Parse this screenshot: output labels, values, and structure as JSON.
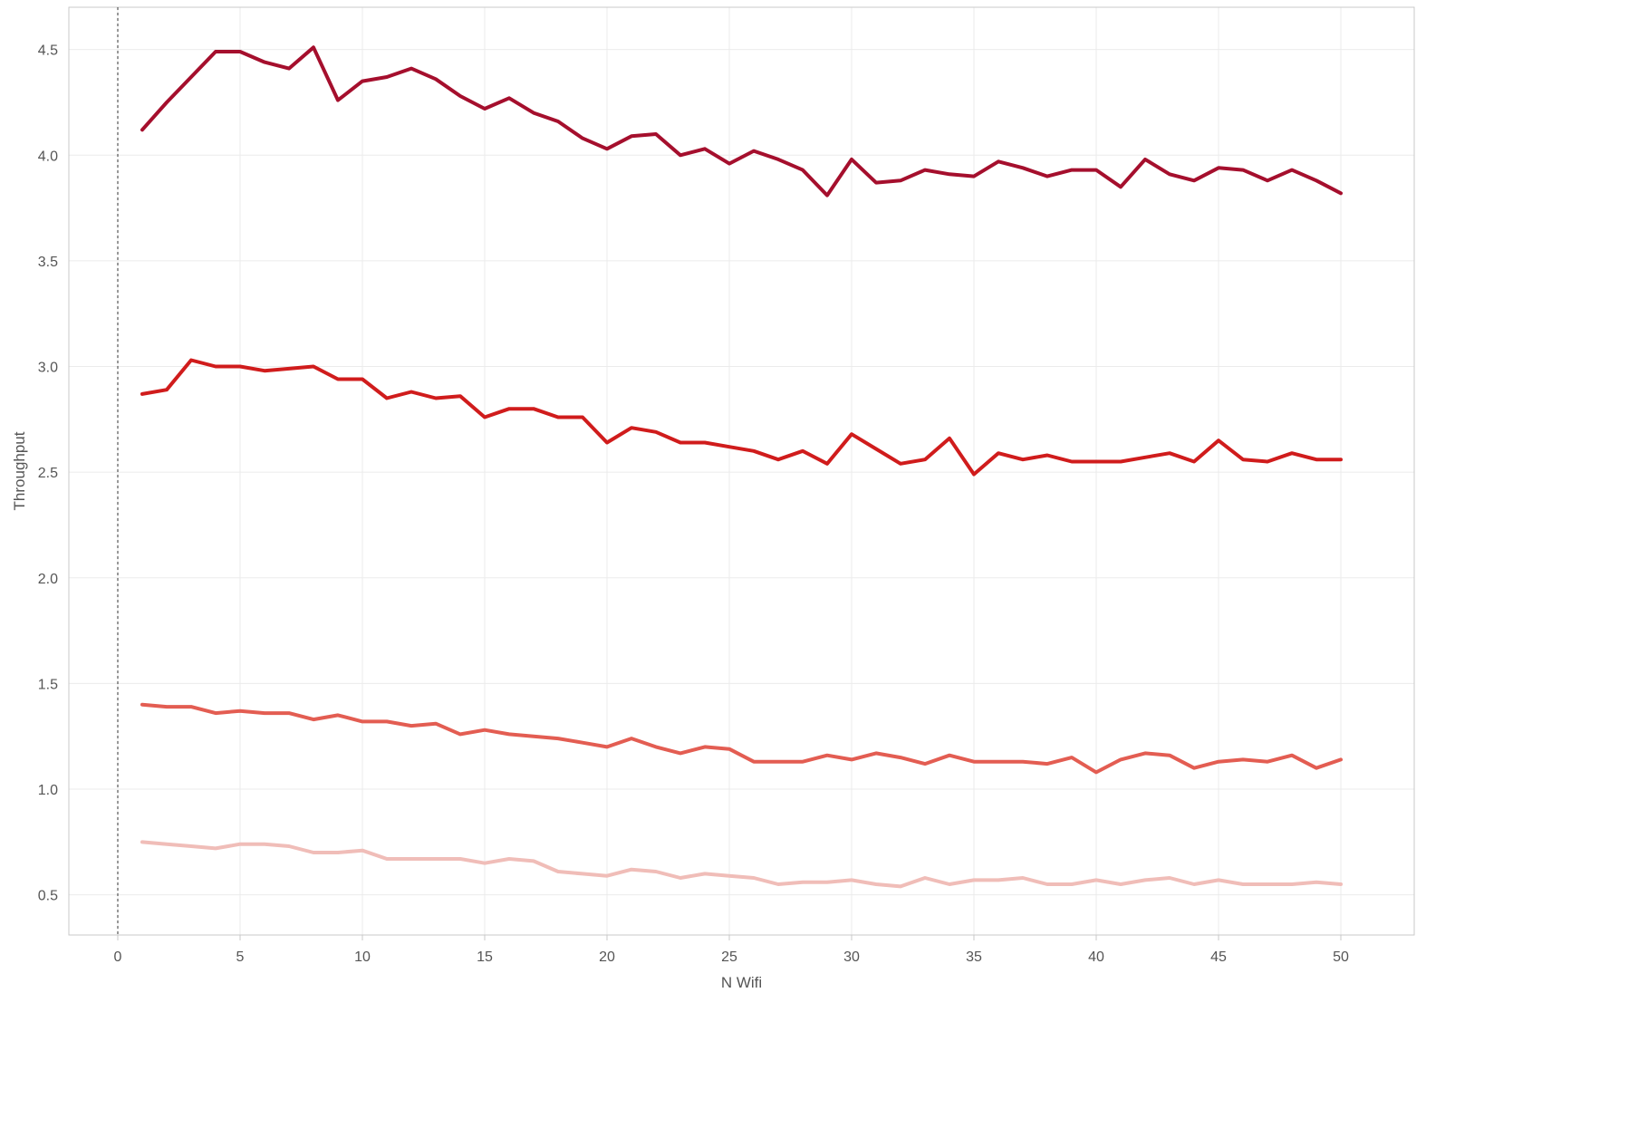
{
  "chart_data": {
    "type": "line",
    "title": "",
    "xlabel": "N Wifi",
    "ylabel": "Throughput",
    "xlim": [
      -2,
      53
    ],
    "ylim": [
      0.31,
      4.7
    ],
    "x_ticks": [
      0,
      5,
      10,
      15,
      20,
      25,
      30,
      35,
      40,
      45,
      50
    ],
    "x_tick_labels": [
      "0",
      "5",
      "10",
      "15",
      "20",
      "25",
      "30",
      "35",
      "40",
      "45",
      "50"
    ],
    "y_ticks": [
      0.5,
      1.0,
      1.5,
      2.0,
      2.5,
      3.0,
      3.5,
      4.0,
      4.5
    ],
    "y_tick_labels": [
      "0.5",
      "1.0",
      "1.5",
      "2.0",
      "2.5",
      "3.0",
      "3.5",
      "4.0",
      "4.5"
    ],
    "grid": true,
    "reference_line_x": 0,
    "x": [
      1,
      2,
      3,
      4,
      5,
      6,
      7,
      8,
      9,
      10,
      11,
      12,
      13,
      14,
      15,
      16,
      17,
      18,
      19,
      20,
      21,
      22,
      23,
      24,
      25,
      26,
      27,
      28,
      29,
      30,
      31,
      32,
      33,
      34,
      35,
      36,
      37,
      38,
      39,
      40,
      41,
      42,
      43,
      44,
      45,
      46,
      47,
      48,
      49,
      50
    ],
    "series": [
      {
        "color": "#a50f2d",
        "values": [
          4.12,
          4.25,
          4.37,
          4.49,
          4.49,
          4.44,
          4.41,
          4.51,
          4.26,
          4.35,
          4.37,
          4.41,
          4.36,
          4.28,
          4.22,
          4.27,
          4.2,
          4.16,
          4.08,
          4.03,
          4.09,
          4.1,
          4.0,
          4.03,
          3.96,
          4.02,
          3.98,
          3.93,
          3.81,
          3.98,
          3.87,
          3.88,
          3.93,
          3.91,
          3.9,
          3.97,
          3.94,
          3.9,
          3.93,
          3.93,
          3.85,
          3.98,
          3.91,
          3.88,
          3.94,
          3.93,
          3.88,
          3.93,
          3.88,
          3.82
        ]
      },
      {
        "color": "#d01c1c",
        "values": [
          2.87,
          2.89,
          3.03,
          3.0,
          3.0,
          2.98,
          2.99,
          3.0,
          2.94,
          2.94,
          2.85,
          2.88,
          2.85,
          2.86,
          2.76,
          2.8,
          2.8,
          2.76,
          2.76,
          2.64,
          2.71,
          2.69,
          2.64,
          2.64,
          2.62,
          2.6,
          2.56,
          2.6,
          2.54,
          2.68,
          2.61,
          2.54,
          2.56,
          2.66,
          2.49,
          2.59,
          2.56,
          2.58,
          2.55,
          2.55,
          2.55,
          2.57,
          2.59,
          2.55,
          2.65,
          2.56,
          2.55,
          2.59,
          2.56,
          2.56
        ]
      },
      {
        "color": "#e35d52",
        "values": [
          1.4,
          1.39,
          1.39,
          1.36,
          1.37,
          1.36,
          1.36,
          1.33,
          1.35,
          1.32,
          1.32,
          1.3,
          1.31,
          1.26,
          1.28,
          1.26,
          1.25,
          1.24,
          1.22,
          1.2,
          1.24,
          1.2,
          1.17,
          1.2,
          1.19,
          1.13,
          1.13,
          1.13,
          1.16,
          1.14,
          1.17,
          1.15,
          1.12,
          1.16,
          1.13,
          1.13,
          1.13,
          1.12,
          1.15,
          1.08,
          1.14,
          1.17,
          1.16,
          1.1,
          1.13,
          1.14,
          1.13,
          1.16,
          1.1,
          1.14
        ]
      },
      {
        "color": "#f0bdb8",
        "values": [
          0.75,
          0.74,
          0.73,
          0.72,
          0.74,
          0.74,
          0.73,
          0.7,
          0.7,
          0.71,
          0.67,
          0.67,
          0.67,
          0.67,
          0.65,
          0.67,
          0.66,
          0.61,
          0.6,
          0.59,
          0.62,
          0.61,
          0.58,
          0.6,
          0.59,
          0.58,
          0.55,
          0.56,
          0.56,
          0.57,
          0.55,
          0.54,
          0.58,
          0.55,
          0.57,
          0.57,
          0.58,
          0.55,
          0.55,
          0.57,
          0.55,
          0.57,
          0.58,
          0.55,
          0.57,
          0.55,
          0.55,
          0.55,
          0.56,
          0.55
        ]
      }
    ]
  }
}
